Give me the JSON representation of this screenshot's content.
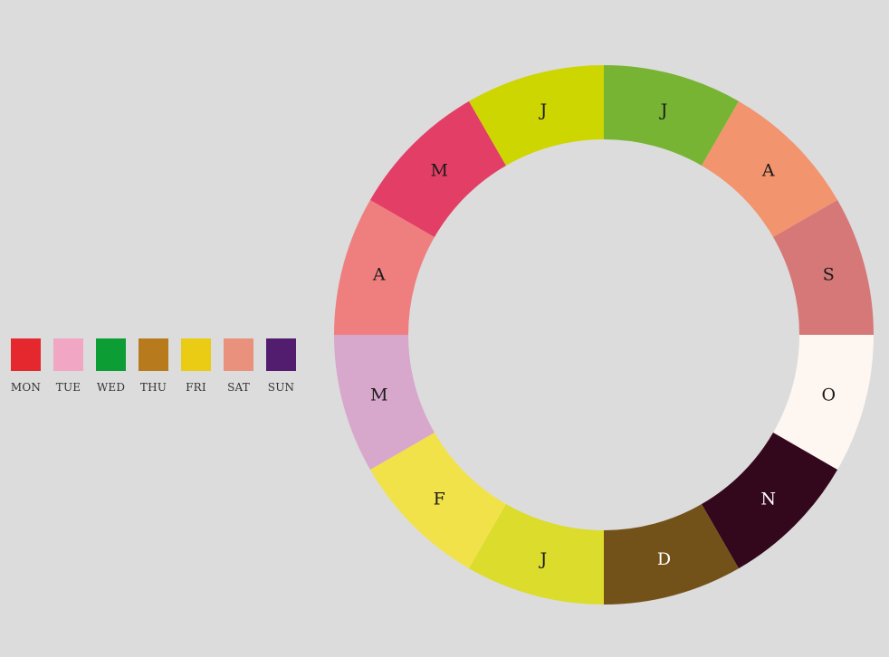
{
  "chart_data": {
    "type": "pie",
    "style": "donut",
    "segments": [
      {
        "label": "J",
        "value": 1,
        "color": "#77b434",
        "text_color": "#1a1a1a"
      },
      {
        "label": "A",
        "value": 1,
        "color": "#f2946e",
        "text_color": "#1a1a1a"
      },
      {
        "label": "S",
        "value": 1,
        "color": "#d67878",
        "text_color": "#1a1a1a"
      },
      {
        "label": "O",
        "value": 1,
        "color": "#fdf6f1",
        "text_color": "#1a1a1a"
      },
      {
        "label": "N",
        "value": 1,
        "color": "#33071c",
        "text_color": "#ffffff"
      },
      {
        "label": "D",
        "value": 1,
        "color": "#73521a",
        "text_color": "#ffffff"
      },
      {
        "label": "J",
        "value": 1,
        "color": "#dbdc2b",
        "text_color": "#1a1a1a"
      },
      {
        "label": "F",
        "value": 1,
        "color": "#f2e24a",
        "text_color": "#1a1a1a"
      },
      {
        "label": "M",
        "value": 1,
        "color": "#d7a8cc",
        "text_color": "#1a1a1a"
      },
      {
        "label": "A",
        "value": 1,
        "color": "#ef7f7f",
        "text_color": "#1a1a1a"
      },
      {
        "label": "M",
        "value": 1,
        "color": "#e33f66",
        "text_color": "#1a1a1a"
      },
      {
        "label": "J",
        "value": 1,
        "color": "#cdd600",
        "text_color": "#1a1a1a"
      }
    ],
    "legend": {
      "placement": "left",
      "items": [
        {
          "label": "MON",
          "color": "#e5282e"
        },
        {
          "label": "TUE",
          "color": "#f1a6c3"
        },
        {
          "label": "WED",
          "color": "#0c9d35"
        },
        {
          "label": "THU",
          "color": "#b77a1c"
        },
        {
          "label": "FRI",
          "color": "#e9cc13"
        },
        {
          "label": "SAT",
          "color": "#ea917e"
        },
        {
          "label": "SUN",
          "color": "#521d6f"
        }
      ]
    }
  }
}
